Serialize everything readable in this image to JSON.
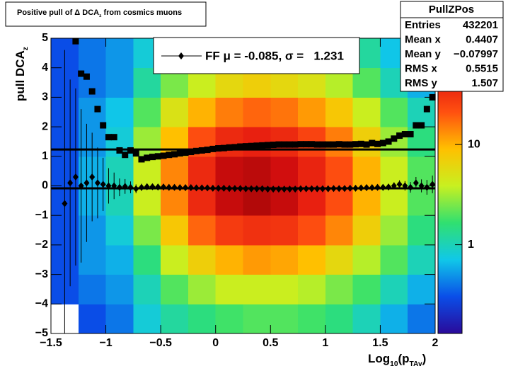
{
  "chart_data": {
    "type": "heatmap",
    "title": [
      {
        "t": "Positive pull of "
      },
      {
        "t": "Δ"
      },
      {
        "t": " DCA"
      },
      {
        "t": "z",
        "sub": true
      },
      {
        "t": " from cosmics muons"
      }
    ],
    "xlabel": [
      {
        "t": "Log"
      },
      {
        "t": "10",
        "sub": true
      },
      {
        "t": "(p"
      },
      {
        "t": "TAv",
        "sub": true
      },
      {
        "t": ")"
      }
    ],
    "ylabel": [
      {
        "t": "pull DCA"
      },
      {
        "t": "z",
        "sub": true
      }
    ],
    "xlim": [
      -1.5,
      2
    ],
    "ylim": [
      -5,
      5
    ],
    "xticks": [
      {
        "value": -1.5,
        "label": "−1.5"
      },
      {
        "value": -1,
        "label": "−1"
      },
      {
        "value": -0.5,
        "label": "−0.5"
      },
      0,
      0.5,
      1,
      1.5,
      2
    ],
    "yticks": [
      {
        "value": -5,
        "label": "−5"
      },
      {
        "value": -4,
        "label": "−4"
      },
      {
        "value": -3,
        "label": "−3"
      },
      {
        "value": -2,
        "label": "−2"
      },
      {
        "value": -1,
        "label": "−1"
      },
      0,
      1,
      2,
      3,
      4,
      5
    ],
    "zlim": [
      0.13,
      115
    ],
    "zticks": [
      1,
      10
    ],
    "zlog": true,
    "palette": [
      "#2a0a9a",
      "#0a4ee8",
      "#10c8e8",
      "#30e070",
      "#c8f020",
      "#ffc000",
      "#ff5010",
      "#e01010",
      "#700000"
    ],
    "xbins": [
      -1.5,
      -1.25,
      -1,
      -0.75,
      -0.5,
      -0.25,
      0,
      0.25,
      0.5,
      0.75,
      1,
      1.25,
      1.5,
      1.75,
      2
    ],
    "ybins": [
      -5,
      -4,
      -3,
      -2,
      -1,
      0,
      1,
      2,
      3,
      4,
      5
    ],
    "z": [
      [
        0,
        0.3,
        0.3,
        0.3,
        0.3,
        0.3,
        0.3,
        0.3,
        0.3,
        0.3
      ],
      [
        0.3,
        0.4,
        0.5,
        0.5,
        0.6,
        0.6,
        0.5,
        0.5,
        0.4,
        0.4
      ],
      [
        0.4,
        0.5,
        0.6,
        0.8,
        1,
        1,
        0.8,
        0.7,
        0.5,
        0.5
      ],
      [
        0.8,
        1,
        1.5,
        2.5,
        4,
        4,
        3,
        2,
        1.2,
        0.8
      ],
      [
        1.2,
        2,
        4,
        8,
        14,
        14,
        9,
        5,
        2.5,
        1.5
      ],
      [
        1.5,
        3,
        7,
        18,
        35,
        35,
        22,
        10,
        4,
        2
      ],
      [
        1.8,
        4,
        10,
        28,
        60,
        60,
        35,
        15,
        6,
        2.5
      ],
      [
        2,
        4,
        12,
        32,
        70,
        65,
        40,
        18,
        7,
        3
      ],
      [
        2,
        4,
        11,
        30,
        60,
        55,
        35,
        16,
        6,
        3
      ],
      [
        1.8,
        3.5,
        9,
        22,
        40,
        38,
        25,
        12,
        5,
        2.5
      ],
      [
        1.5,
        2.5,
        6,
        14,
        22,
        22,
        15,
        8,
        3.5,
        2
      ],
      [
        1,
        1.8,
        3.5,
        7,
        10,
        10,
        7,
        4,
        2,
        1.2
      ],
      [
        0.6,
        1,
        2,
        3,
        4,
        4,
        3,
        2,
        1,
        0.7
      ],
      [
        0.4,
        0.6,
        1,
        1.5,
        2,
        2,
        1.5,
        1,
        0.6,
        0.4
      ]
    ],
    "x": [
      -1.375,
      -1.325,
      -1.275,
      -1.225,
      -1.175,
      -1.125,
      -1.075,
      -1.025,
      -0.975,
      -0.925,
      -0.875,
      -0.825,
      -0.775,
      -0.725,
      -0.675,
      -0.625,
      -0.575,
      -0.525,
      -0.475,
      -0.425,
      -0.375,
      -0.325,
      -0.275,
      -0.225,
      -0.175,
      -0.125,
      -0.075,
      -0.025,
      0.025,
      0.075,
      0.125,
      0.175,
      0.225,
      0.275,
      0.325,
      0.375,
      0.425,
      0.475,
      0.525,
      0.575,
      0.625,
      0.675,
      0.725,
      0.775,
      0.825,
      0.875,
      0.925,
      0.975,
      1.025,
      1.075,
      1.125,
      1.175,
      1.225,
      1.275,
      1.325,
      1.375,
      1.425,
      1.475,
      1.525,
      1.575,
      1.625,
      1.675,
      1.725,
      1.775,
      1.825,
      1.875,
      1.925,
      1.975
    ],
    "series": [
      {
        "name": "mean",
        "marker": "diamond",
        "color": "#000000",
        "values": [
          -0.6,
          0.1,
          0.3,
          0.0,
          0.1,
          0.3,
          0.1,
          0.05,
          0.0,
          0.0,
          -0.05,
          -0.02,
          -0.05,
          -0.1,
          -0.05,
          -0.03,
          -0.03,
          -0.04,
          -0.04,
          -0.05,
          -0.05,
          -0.06,
          -0.06,
          -0.06,
          -0.07,
          -0.07,
          -0.07,
          -0.08,
          -0.08,
          -0.08,
          -0.09,
          -0.09,
          -0.09,
          -0.1,
          -0.1,
          -0.1,
          -0.1,
          -0.11,
          -0.11,
          -0.11,
          -0.11,
          -0.11,
          -0.11,
          -0.1,
          -0.1,
          -0.1,
          -0.1,
          -0.1,
          -0.1,
          -0.09,
          -0.09,
          -0.09,
          -0.08,
          -0.08,
          -0.07,
          -0.06,
          -0.06,
          -0.05,
          -0.05,
          -0.04,
          0.0,
          0.05,
          0.0,
          -0.05,
          0.1,
          0.0,
          -0.05,
          0.05
        ],
        "errors": [
          5.2,
          3.5,
          3.0,
          2.6,
          2.0,
          1.5,
          1.2,
          0.9,
          0.6,
          0.45,
          0.3,
          0.25,
          0.2,
          0.15,
          0.12,
          0.1,
          0.08,
          0.07,
          0.06,
          0.05,
          0.05,
          0.05,
          0.05,
          0.05,
          0.05,
          0.05,
          0.05,
          0.05,
          0.05,
          0.05,
          0.05,
          0.05,
          0.05,
          0.05,
          0.05,
          0.05,
          0.05,
          0.05,
          0.05,
          0.05,
          0.05,
          0.05,
          0.05,
          0.05,
          0.05,
          0.05,
          0.05,
          0.05,
          0.05,
          0.05,
          0.05,
          0.05,
          0.05,
          0.05,
          0.06,
          0.06,
          0.07,
          0.08,
          0.09,
          0.1,
          0.12,
          0.14,
          0.16,
          0.18,
          0.2,
          0.22,
          0.25,
          0.3
        ]
      },
      {
        "name": "rms",
        "marker": "square",
        "color": "#000000",
        "values": [
          null,
          null,
          4.9,
          3.8,
          3.7,
          3.2,
          2.6,
          2.05,
          1.65,
          1.65,
          1.2,
          1.05,
          1.2,
          1.1,
          0.9,
          0.95,
          0.98,
          1.0,
          1.02,
          1.05,
          1.07,
          1.1,
          1.12,
          1.15,
          1.18,
          1.2,
          1.22,
          1.25,
          1.27,
          1.28,
          1.3,
          1.31,
          1.33,
          1.34,
          1.35,
          1.36,
          1.37,
          1.38,
          1.39,
          1.4,
          1.4,
          1.4,
          1.4,
          1.41,
          1.41,
          1.41,
          1.4,
          1.4,
          1.4,
          1.4,
          1.41,
          1.4,
          1.4,
          1.41,
          1.42,
          1.4,
          1.45,
          1.42,
          1.45,
          1.5,
          1.6,
          1.7,
          1.75,
          1.75,
          2.05,
          2.05,
          2.6,
          3.0
        ]
      }
    ],
    "fit_lines": [
      -0.085,
      1.231
    ],
    "legend": "FF μ = -0.085, σ =   1.231",
    "stats": {
      "title": "PullZPos",
      "rows": [
        [
          "Entries",
          "432201"
        ],
        [
          "Mean x",
          "0.4407"
        ],
        [
          "Mean y",
          "−0.07997"
        ],
        [
          "RMS x",
          "0.5515"
        ],
        [
          "RMS y",
          "1.507"
        ]
      ]
    }
  }
}
